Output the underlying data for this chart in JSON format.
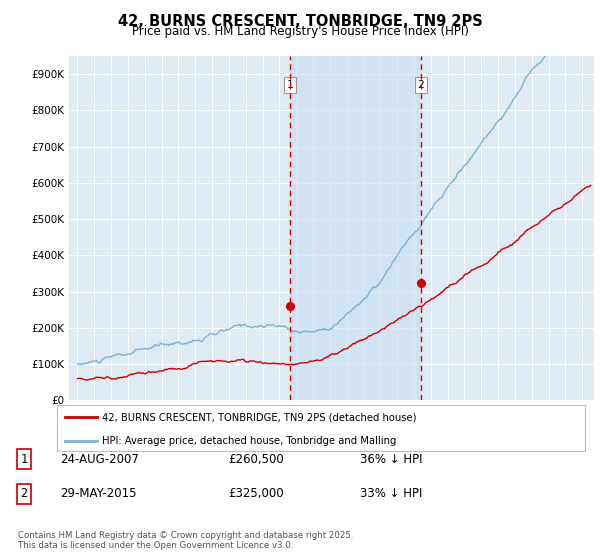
{
  "title": "42, BURNS CRESCENT, TONBRIDGE, TN9 2PS",
  "subtitle": "Price paid vs. HM Land Registry's House Price Index (HPI)",
  "ylim": [
    0,
    950000
  ],
  "yticks": [
    0,
    100000,
    200000,
    300000,
    400000,
    500000,
    600000,
    700000,
    800000,
    900000
  ],
  "ytick_labels": [
    "£0",
    "£100K",
    "£200K",
    "£300K",
    "£400K",
    "£500K",
    "£600K",
    "£700K",
    "£800K",
    "£900K"
  ],
  "hpi_color": "#7ab3d4",
  "hpi_shade_color": "#cce0f0",
  "price_color": "#cc0000",
  "vline_color": "#dd0000",
  "background_color": "#ffffff",
  "plot_bg_color": "#deeaf4",
  "grid_color": "#ffffff",
  "transaction1_x": 2007.65,
  "transaction1_price": 260500,
  "transaction2_x": 2015.4,
  "transaction2_price": 325000,
  "legend_line1": "42, BURNS CRESCENT, TONBRIDGE, TN9 2PS (detached house)",
  "legend_line2": "HPI: Average price, detached house, Tonbridge and Malling",
  "footnote": "Contains HM Land Registry data © Crown copyright and database right 2025.\nThis data is licensed under the Open Government Licence v3.0.",
  "table_row1": [
    "1",
    "24-AUG-2007",
    "£260,500",
    "36% ↓ HPI"
  ],
  "table_row2": [
    "2",
    "29-MAY-2015",
    "£325,000",
    "33% ↓ HPI"
  ]
}
